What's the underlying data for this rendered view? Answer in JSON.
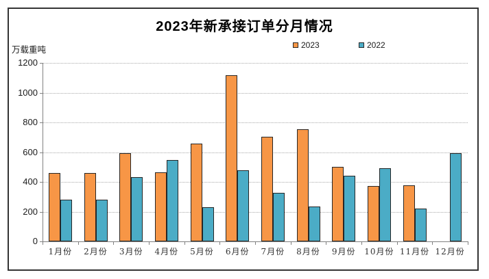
{
  "chart": {
    "title": "2023年新承接订单分月情况",
    "unit_label": "万载重吨",
    "accent_colors": {
      "series_2023": "#F79646",
      "series_2022": "#4BACC6"
    }
  },
  "chart_data": {
    "type": "bar",
    "title": "2023年新承接订单分月情况",
    "ylabel": "万载重吨",
    "xlabel": "",
    "categories": [
      "1月份",
      "2月份",
      "3月份",
      "4月份",
      "5月份",
      "6月份",
      "7月份",
      "8月份",
      "9月份",
      "10月份",
      "11月份",
      "12月份"
    ],
    "series": [
      {
        "name": "2023",
        "color": "#F79646",
        "values": [
          460,
          462,
          592,
          466,
          658,
          1117,
          703,
          755,
          502,
          372,
          377,
          null
        ]
      },
      {
        "name": "2022",
        "color": "#4BACC6",
        "values": [
          282,
          281,
          430,
          546,
          230,
          476,
          326,
          234,
          441,
          492,
          220,
          592
        ]
      }
    ],
    "ylim": [
      0,
      1200
    ],
    "ytick_step": 200,
    "yticks": [
      0,
      200,
      400,
      600,
      800,
      1000,
      1200
    ],
    "grid": "horizontal-dotted",
    "legend_position": "top"
  }
}
